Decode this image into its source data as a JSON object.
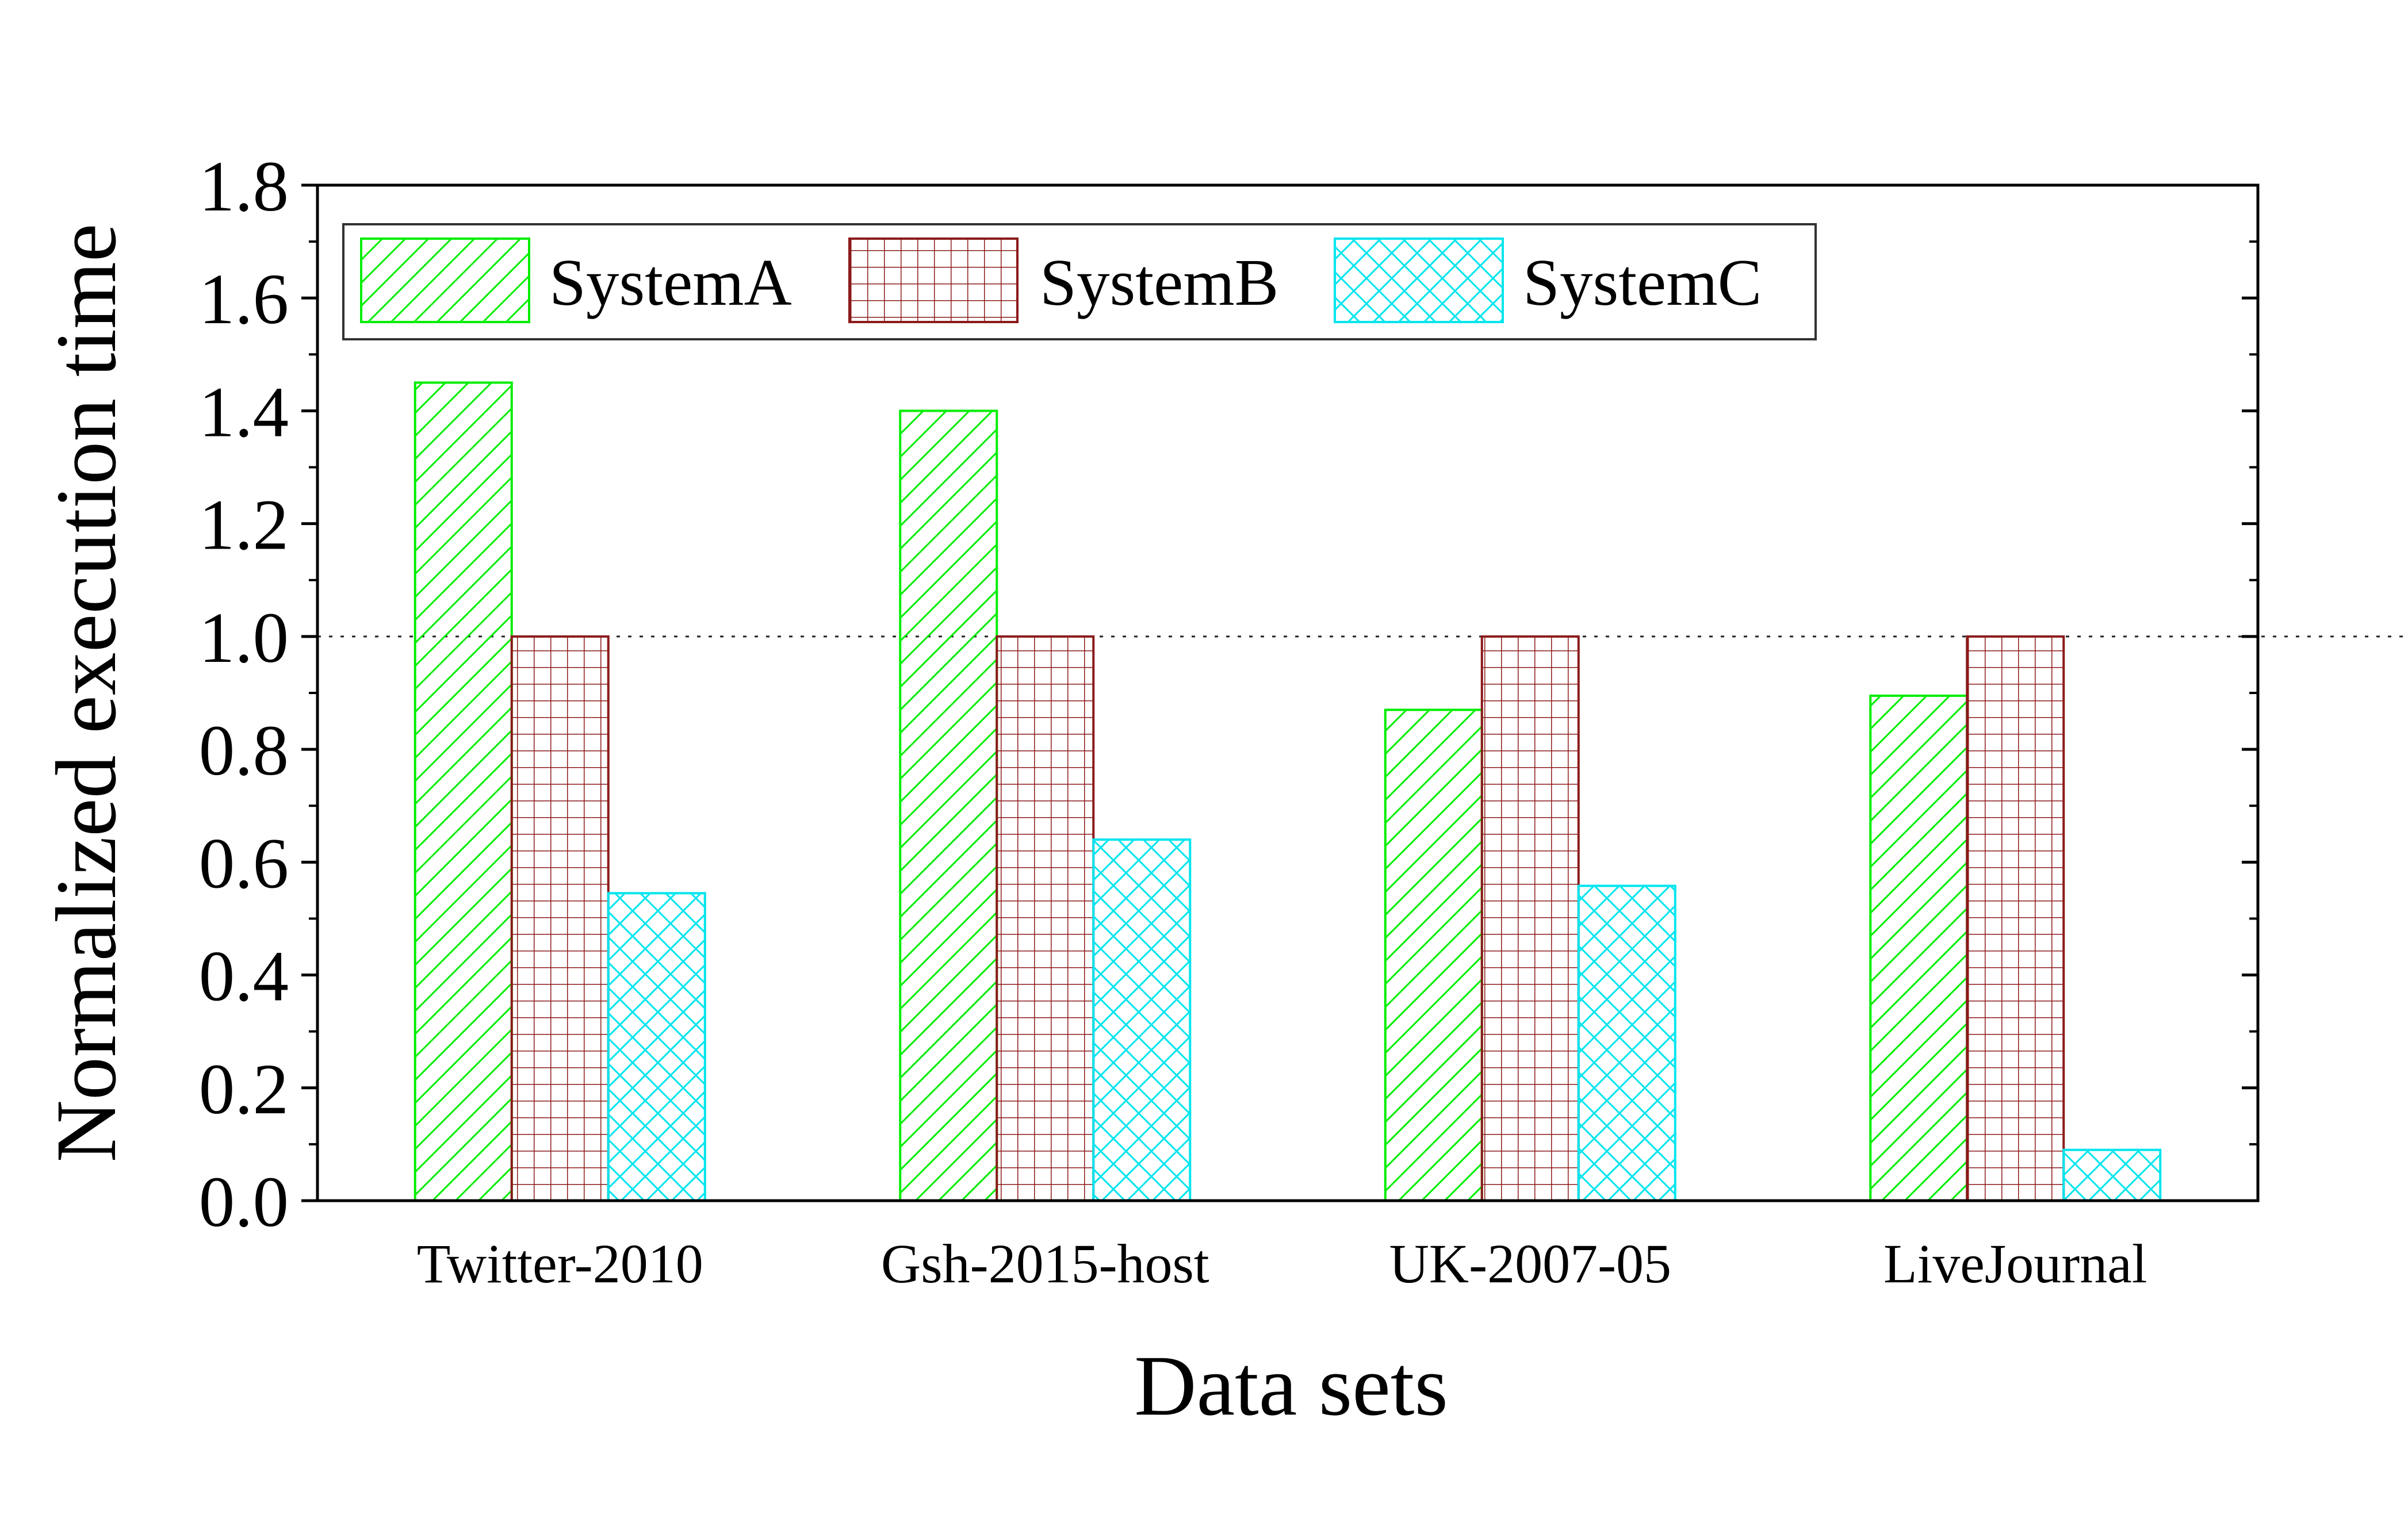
{
  "chart_data": {
    "type": "bar",
    "title": "",
    "xlabel": "Data sets",
    "ylabel": "Normalized execution time",
    "categories": [
      "Twitter-2010",
      "Gsh-2015-host",
      "UK-2007-05",
      "LiveJournal"
    ],
    "series": [
      {
        "name": "SystemA",
        "values": [
          1.45,
          1.4,
          0.87,
          0.895
        ],
        "color": "#00ee00",
        "pattern": "diagonal-hatch"
      },
      {
        "name": "SystemB",
        "values": [
          1.0,
          1.0,
          1.0,
          1.0
        ],
        "color": "#8b1a1a",
        "pattern": "grid"
      },
      {
        "name": "SystemC",
        "values": [
          0.545,
          0.64,
          0.558,
          0.09
        ],
        "color": "#00e5ee",
        "pattern": "cross-hatch"
      }
    ],
    "ylim": [
      0,
      1.8
    ],
    "yticks": [
      "0.0",
      "0.2",
      "0.4",
      "0.6",
      "0.8",
      "1.0",
      "1.2",
      "1.4",
      "1.6",
      "1.8"
    ],
    "yticks_minor_step": 0.1,
    "reference_line": {
      "y": 1.0,
      "style": "dotted"
    },
    "legend": {
      "placement": "top-left",
      "columns": 3
    },
    "grid": false
  }
}
